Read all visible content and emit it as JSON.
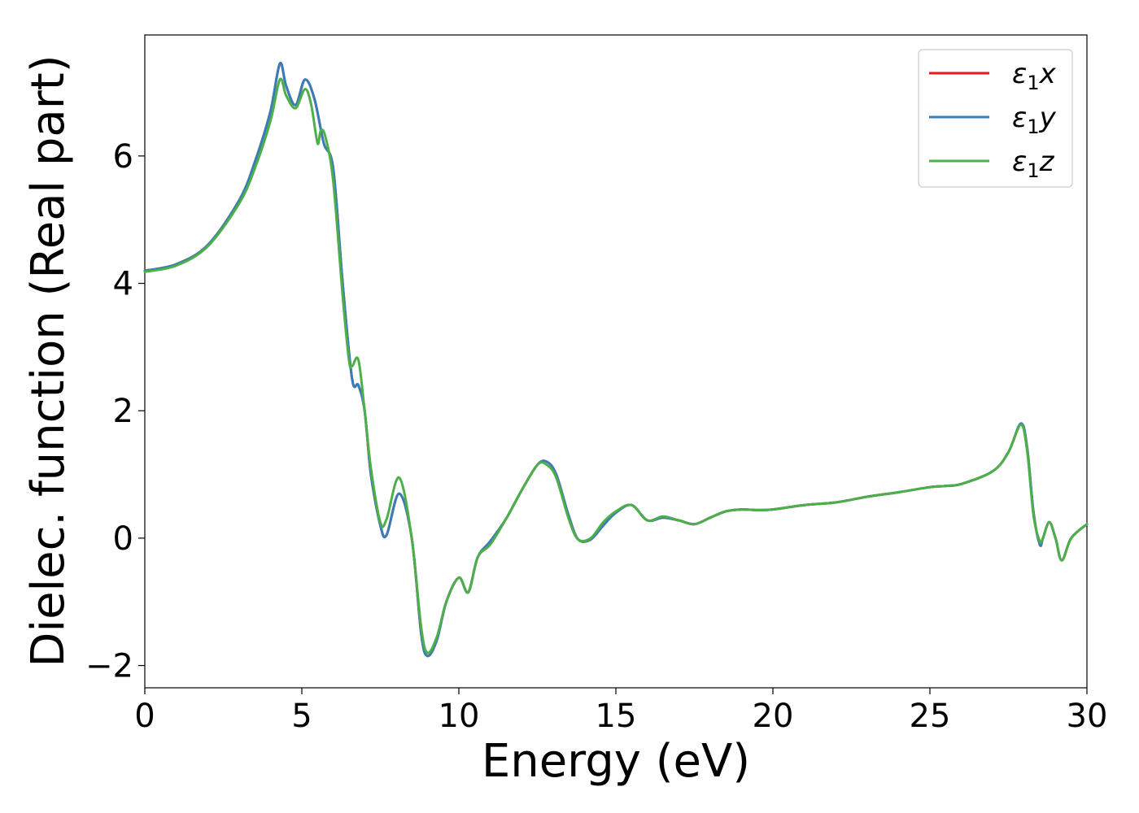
{
  "chart_data": {
    "type": "line",
    "xlabel": "Energy (eV)",
    "ylabel": "Dielec. function (Real part)",
    "xlim": [
      0,
      30
    ],
    "ylim": [
      -2.35,
      7.9
    ],
    "xticks": [
      0,
      5,
      10,
      15,
      20,
      25,
      30
    ],
    "xtick_labels": [
      "0",
      "5",
      "10",
      "15",
      "20",
      "25",
      "30"
    ],
    "yticks": [
      -2,
      0,
      2,
      4,
      6
    ],
    "ytick_labels": [
      "−2",
      "0",
      "2",
      "4",
      "6"
    ],
    "grid": false,
    "legend": "top-right",
    "series": [
      {
        "name": "ε₁x",
        "legend_main": "ε",
        "legend_sub": "1",
        "legend_suffix": "x",
        "color": "#e41a1c",
        "x": [
          0,
          1,
          2,
          3,
          3.5,
          4,
          4.3,
          4.5,
          4.8,
          5.1,
          5.4,
          5.7,
          6.0,
          6.3,
          6.6,
          6.8,
          7.0,
          7.2,
          7.5,
          7.7,
          8.1,
          8.5,
          8.8,
          9.0,
          9.3,
          9.6,
          10.0,
          10.3,
          10.6,
          11.0,
          11.5,
          12.0,
          12.5,
          12.8,
          13.1,
          13.5,
          13.8,
          14.2,
          14.6,
          15.0,
          15.5,
          16.0,
          16.5,
          17.0,
          17.5,
          18.0,
          18.5,
          19.0,
          19.5,
          20.0,
          21.0,
          22.0,
          23.0,
          24.0,
          25.0,
          25.5,
          26.0,
          27.0,
          27.5,
          27.9,
          28.1,
          28.3,
          28.5,
          28.6,
          28.8,
          29.0,
          29.2,
          29.5,
          30.0
        ],
        "y": [
          4.2,
          4.3,
          4.6,
          5.3,
          5.9,
          6.7,
          7.45,
          7.1,
          6.8,
          7.2,
          6.9,
          6.2,
          5.8,
          4.0,
          2.5,
          2.4,
          2.0,
          1.0,
          0.2,
          0.05,
          0.7,
          0.0,
          -1.5,
          -1.85,
          -1.6,
          -1.0,
          -0.62,
          -0.85,
          -0.3,
          -0.05,
          0.3,
          0.75,
          1.15,
          1.2,
          1.0,
          0.35,
          -0.02,
          -0.02,
          0.2,
          0.4,
          0.52,
          0.28,
          0.32,
          0.28,
          0.22,
          0.32,
          0.42,
          0.45,
          0.44,
          0.45,
          0.52,
          0.56,
          0.65,
          0.72,
          0.8,
          0.82,
          0.85,
          1.05,
          1.35,
          1.8,
          1.4,
          0.4,
          -0.1,
          0.0,
          0.25,
          0.0,
          -0.35,
          0.0,
          0.22
        ]
      },
      {
        "name": "ε₁y",
        "legend_main": "ε",
        "legend_sub": "1",
        "legend_suffix": "y",
        "color": "#377eb8",
        "x": [
          0,
          1,
          2,
          3,
          3.5,
          4,
          4.3,
          4.5,
          4.8,
          5.1,
          5.4,
          5.7,
          6.0,
          6.3,
          6.6,
          6.8,
          7.0,
          7.2,
          7.5,
          7.7,
          8.1,
          8.5,
          8.8,
          9.0,
          9.3,
          9.6,
          10.0,
          10.3,
          10.6,
          11.0,
          11.5,
          12.0,
          12.5,
          12.8,
          13.1,
          13.5,
          13.8,
          14.2,
          14.6,
          15.0,
          15.5,
          16.0,
          16.5,
          17.0,
          17.5,
          18.0,
          18.5,
          19.0,
          19.5,
          20.0,
          21.0,
          22.0,
          23.0,
          24.0,
          25.0,
          25.5,
          26.0,
          27.0,
          27.5,
          27.9,
          28.1,
          28.3,
          28.5,
          28.6,
          28.8,
          29.0,
          29.2,
          29.5,
          30.0
        ],
        "y": [
          4.2,
          4.3,
          4.6,
          5.3,
          5.9,
          6.7,
          7.45,
          7.1,
          6.8,
          7.2,
          6.9,
          6.2,
          5.8,
          4.0,
          2.5,
          2.4,
          2.0,
          1.0,
          0.2,
          0.05,
          0.7,
          0.0,
          -1.5,
          -1.85,
          -1.6,
          -1.0,
          -0.62,
          -0.85,
          -0.3,
          -0.05,
          0.3,
          0.75,
          1.15,
          1.2,
          1.0,
          0.35,
          -0.02,
          -0.02,
          0.2,
          0.4,
          0.52,
          0.28,
          0.32,
          0.28,
          0.22,
          0.32,
          0.42,
          0.45,
          0.44,
          0.45,
          0.52,
          0.56,
          0.65,
          0.72,
          0.8,
          0.82,
          0.85,
          1.05,
          1.35,
          1.8,
          1.4,
          0.4,
          -0.1,
          0.0,
          0.25,
          0.0,
          -0.35,
          0.0,
          0.22
        ]
      },
      {
        "name": "ε₁z",
        "legend_main": "ε",
        "legend_sub": "1",
        "legend_suffix": "z",
        "color": "#4daf4a",
        "x": [
          0,
          1,
          2,
          3,
          3.5,
          4,
          4.3,
          4.5,
          4.8,
          5.1,
          5.3,
          5.5,
          5.6,
          5.75,
          6.0,
          6.3,
          6.5,
          6.6,
          6.8,
          7.0,
          7.2,
          7.5,
          7.7,
          8.1,
          8.5,
          8.8,
          9.0,
          9.3,
          9.6,
          10.0,
          10.3,
          10.6,
          11.0,
          11.5,
          12.0,
          12.5,
          12.8,
          13.1,
          13.5,
          13.8,
          14.2,
          14.6,
          15.0,
          15.5,
          16.0,
          16.5,
          17.0,
          17.5,
          18.0,
          18.5,
          19.0,
          19.5,
          20.0,
          21.0,
          22.0,
          23.0,
          24.0,
          25.0,
          25.5,
          26.0,
          27.0,
          27.5,
          27.9,
          28.1,
          28.3,
          28.5,
          28.6,
          28.8,
          29.0,
          29.2,
          29.5,
          30.0
        ],
        "y": [
          4.18,
          4.28,
          4.58,
          5.25,
          5.8,
          6.55,
          7.2,
          6.95,
          6.75,
          7.05,
          6.8,
          6.2,
          6.4,
          6.3,
          5.6,
          3.8,
          2.8,
          2.7,
          2.8,
          2.0,
          1.1,
          0.25,
          0.3,
          0.95,
          0.0,
          -1.4,
          -1.8,
          -1.55,
          -1.0,
          -0.62,
          -0.85,
          -0.3,
          -0.1,
          0.3,
          0.75,
          1.15,
          1.15,
          0.95,
          0.3,
          -0.02,
          0.0,
          0.25,
          0.42,
          0.52,
          0.28,
          0.34,
          0.28,
          0.22,
          0.32,
          0.42,
          0.45,
          0.44,
          0.45,
          0.52,
          0.56,
          0.65,
          0.72,
          0.8,
          0.82,
          0.85,
          1.05,
          1.35,
          1.78,
          1.35,
          0.35,
          -0.05,
          0.0,
          0.25,
          0.0,
          -0.35,
          0.0,
          0.22
        ]
      }
    ]
  }
}
